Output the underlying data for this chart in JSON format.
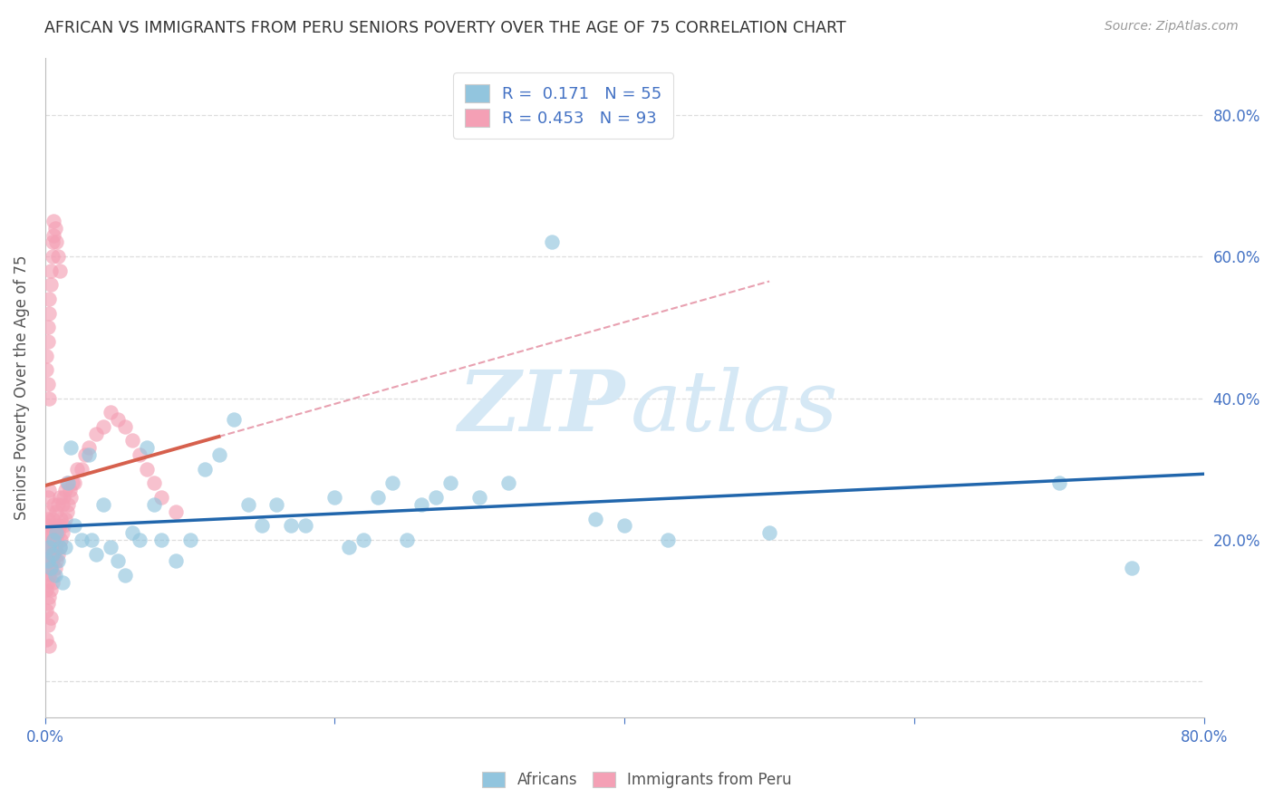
{
  "title": "AFRICAN VS IMMIGRANTS FROM PERU SENIORS POVERTY OVER THE AGE OF 75 CORRELATION CHART",
  "source": "Source: ZipAtlas.com",
  "ylabel": "Seniors Poverty Over the Age of 75",
  "xlim": [
    0.0,
    0.8
  ],
  "ylim": [
    -0.05,
    0.88
  ],
  "africans_R": 0.171,
  "africans_N": 55,
  "peru_R": 0.453,
  "peru_N": 93,
  "legend_africans": "Africans",
  "legend_peru": "Immigrants from Peru",
  "blue_color": "#92c5de",
  "pink_color": "#f4a0b5",
  "blue_line_color": "#2166ac",
  "pink_line_color": "#d6604d",
  "dashed_line_color": "#e8a0b0",
  "watermark_color": "#d5e8f5",
  "title_color": "#333333",
  "axis_label_color": "#4472c4",
  "grid_color": "#dddddd",
  "africans_x": [
    0.002,
    0.003,
    0.004,
    0.005,
    0.006,
    0.007,
    0.008,
    0.009,
    0.01,
    0.012,
    0.014,
    0.016,
    0.018,
    0.02,
    0.025,
    0.03,
    0.032,
    0.035,
    0.04,
    0.045,
    0.05,
    0.055,
    0.06,
    0.065,
    0.07,
    0.075,
    0.08,
    0.09,
    0.1,
    0.11,
    0.12,
    0.13,
    0.14,
    0.15,
    0.16,
    0.17,
    0.18,
    0.2,
    0.21,
    0.22,
    0.23,
    0.24,
    0.25,
    0.26,
    0.27,
    0.28,
    0.3,
    0.32,
    0.35,
    0.38,
    0.4,
    0.43,
    0.5,
    0.7,
    0.75
  ],
  "africans_y": [
    0.17,
    0.19,
    0.16,
    0.18,
    0.2,
    0.15,
    0.21,
    0.17,
    0.19,
    0.14,
    0.19,
    0.28,
    0.33,
    0.22,
    0.2,
    0.32,
    0.2,
    0.18,
    0.25,
    0.19,
    0.17,
    0.15,
    0.21,
    0.2,
    0.33,
    0.25,
    0.2,
    0.17,
    0.2,
    0.3,
    0.32,
    0.37,
    0.25,
    0.22,
    0.25,
    0.22,
    0.22,
    0.26,
    0.19,
    0.2,
    0.26,
    0.28,
    0.2,
    0.25,
    0.26,
    0.28,
    0.26,
    0.28,
    0.62,
    0.23,
    0.22,
    0.2,
    0.21,
    0.28,
    0.16
  ],
  "peru_x": [
    0.001,
    0.001,
    0.001,
    0.001,
    0.001,
    0.001,
    0.002,
    0.002,
    0.002,
    0.002,
    0.002,
    0.002,
    0.002,
    0.003,
    0.003,
    0.003,
    0.003,
    0.003,
    0.003,
    0.003,
    0.004,
    0.004,
    0.004,
    0.004,
    0.004,
    0.005,
    0.005,
    0.005,
    0.005,
    0.006,
    0.006,
    0.006,
    0.006,
    0.007,
    0.007,
    0.007,
    0.008,
    0.008,
    0.008,
    0.009,
    0.009,
    0.009,
    0.01,
    0.01,
    0.01,
    0.011,
    0.011,
    0.012,
    0.012,
    0.013,
    0.013,
    0.014,
    0.014,
    0.015,
    0.015,
    0.016,
    0.017,
    0.018,
    0.019,
    0.02,
    0.022,
    0.025,
    0.028,
    0.03,
    0.035,
    0.04,
    0.045,
    0.05,
    0.055,
    0.06,
    0.065,
    0.07,
    0.075,
    0.08,
    0.09,
    0.001,
    0.001,
    0.002,
    0.002,
    0.003,
    0.003,
    0.004,
    0.004,
    0.005,
    0.005,
    0.006,
    0.006,
    0.007,
    0.008,
    0.009,
    0.01,
    0.002,
    0.003
  ],
  "peru_y": [
    0.13,
    0.16,
    0.1,
    0.19,
    0.06,
    0.22,
    0.11,
    0.14,
    0.17,
    0.2,
    0.23,
    0.08,
    0.26,
    0.12,
    0.15,
    0.18,
    0.21,
    0.24,
    0.27,
    0.05,
    0.13,
    0.16,
    0.19,
    0.22,
    0.09,
    0.14,
    0.17,
    0.2,
    0.23,
    0.15,
    0.18,
    0.21,
    0.25,
    0.16,
    0.19,
    0.22,
    0.17,
    0.2,
    0.24,
    0.18,
    0.21,
    0.25,
    0.19,
    0.22,
    0.26,
    0.2,
    0.23,
    0.21,
    0.25,
    0.22,
    0.26,
    0.23,
    0.27,
    0.24,
    0.28,
    0.25,
    0.27,
    0.26,
    0.28,
    0.28,
    0.3,
    0.3,
    0.32,
    0.33,
    0.35,
    0.36,
    0.38,
    0.37,
    0.36,
    0.34,
    0.32,
    0.3,
    0.28,
    0.26,
    0.24,
    0.44,
    0.46,
    0.48,
    0.5,
    0.52,
    0.54,
    0.56,
    0.58,
    0.6,
    0.62,
    0.63,
    0.65,
    0.64,
    0.62,
    0.6,
    0.58,
    0.42,
    0.4
  ]
}
